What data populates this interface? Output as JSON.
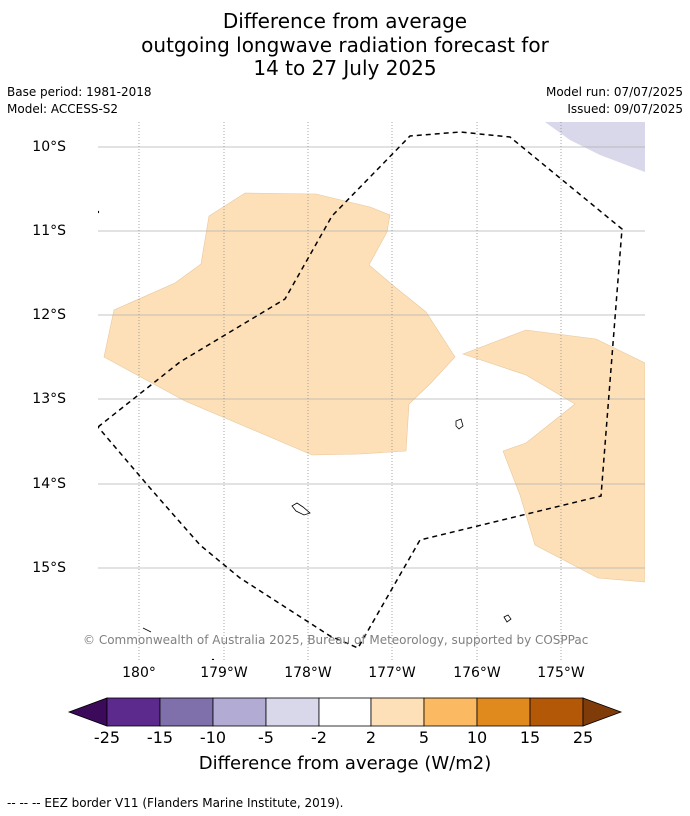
{
  "title": {
    "line1": "Difference from average",
    "line2": "outgoing longwave radiation forecast for",
    "line3": "14 to 27 July 2025"
  },
  "meta": {
    "base_period": "Base period: 1981-2018",
    "model": "Model: ACCESS-S2",
    "model_run": "Model run: 07/07/2025",
    "issued": "Issued: 09/07/2025"
  },
  "map": {
    "lat_labels": [
      "10°S",
      "11°S",
      "12°S",
      "13°S",
      "14°S",
      "15°S"
    ],
    "lon_labels": [
      "180°",
      "179°W",
      "178°W",
      "177°W",
      "176°W",
      "175°W"
    ],
    "copyright": "© Commonwealth of Australia 2025, Bureau of Meteorology, supported by COSPPac",
    "anomaly_fill_colors": {
      "2_to_5": "#fde0b8",
      "-5_to_-2": "#d8d8ea"
    }
  },
  "colorbar": {
    "ticks": [
      "-25",
      "-15",
      "-10",
      "-5",
      "-2",
      "2",
      "5",
      "10",
      "15",
      "25"
    ],
    "colors": [
      "#3c0a5a",
      "#5b2a8c",
      "#7f70ac",
      "#b2abd3",
      "#d8d8ea",
      "#ffffff",
      "#fde0b8",
      "#fbb962",
      "#e08a1d",
      "#b35806",
      "#7f3b08"
    ],
    "label": "Difference from average (W/m2)"
  },
  "footer": {
    "legend_text": "--  --  -- EEZ border V11 (Flanders Marine Institute, 2019)."
  }
}
